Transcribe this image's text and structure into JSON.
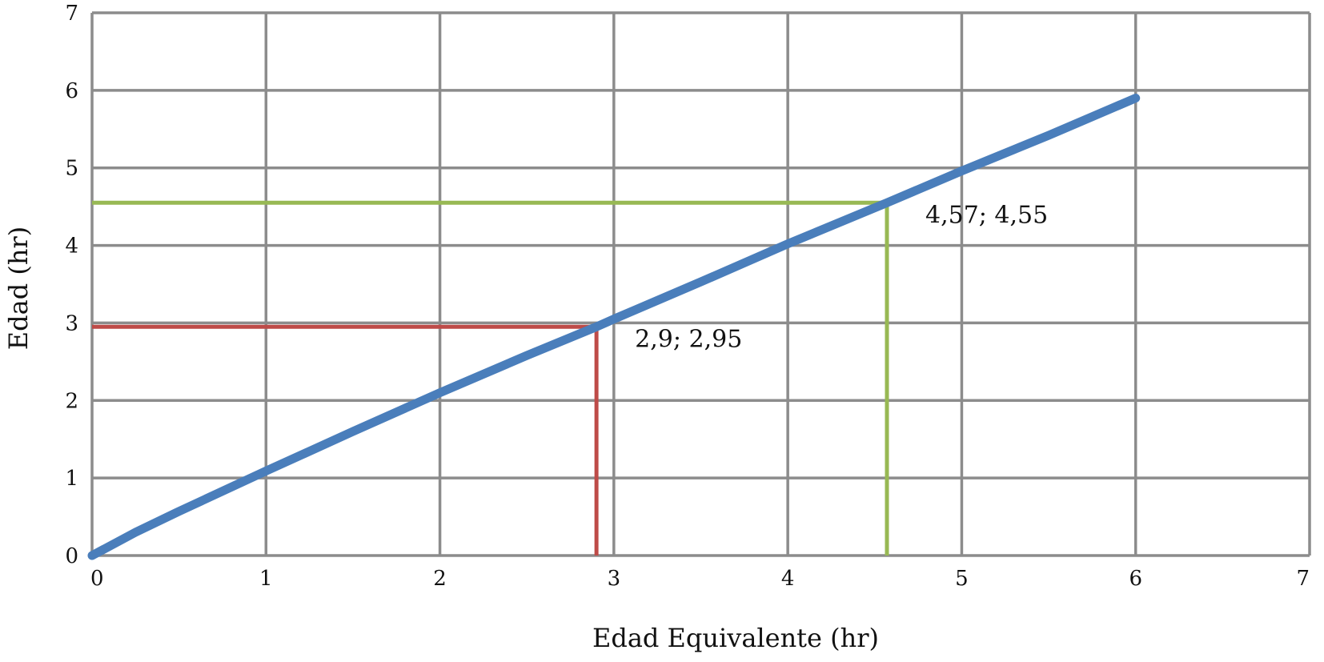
{
  "chart_data": {
    "type": "line",
    "title": "",
    "xlabel": "Edad Equivalente (hr)",
    "ylabel": "Edad (hr)",
    "xlim": [
      0,
      7
    ],
    "ylim": [
      0,
      7
    ],
    "xticks": [
      0,
      1,
      2,
      3,
      4,
      5,
      6,
      7
    ],
    "yticks": [
      0,
      1,
      2,
      3,
      4,
      5,
      6,
      7
    ],
    "xtick_labels": [
      "0",
      "1",
      "2",
      "3",
      "4",
      "5",
      "6",
      "7"
    ],
    "ytick_labels": [
      "0",
      "1",
      "2",
      "3",
      "4",
      "5",
      "6",
      "7"
    ],
    "grid": true,
    "legend": "none",
    "colors": {
      "grid": "#8c8c8c",
      "curve": "#4a7ebb",
      "red_marker": "#be4b48",
      "green_marker": "#98b954"
    },
    "series": [
      {
        "x": [
          0,
          0.25,
          0.5,
          1,
          1.5,
          2,
          2.5,
          2.9,
          3,
          3.5,
          4,
          4.57,
          5,
          5.5,
          6
        ],
        "y": [
          0,
          0.3,
          0.57,
          1.09,
          1.6,
          2.1,
          2.58,
          2.95,
          3.05,
          3.53,
          4.02,
          4.55,
          4.96,
          5.42,
          5.9
        ]
      }
    ],
    "reference_lines": [
      {
        "x": 2.9,
        "y": 2.95,
        "color": "#be4b48"
      },
      {
        "x": 4.57,
        "y": 4.55,
        "color": "#98b954"
      }
    ],
    "annotations": [
      {
        "text": "2,9; 2,95",
        "x": 2.9,
        "y": 2.95
      },
      {
        "text": "4,57; 4,55",
        "x": 4.57,
        "y": 4.55
      }
    ]
  }
}
